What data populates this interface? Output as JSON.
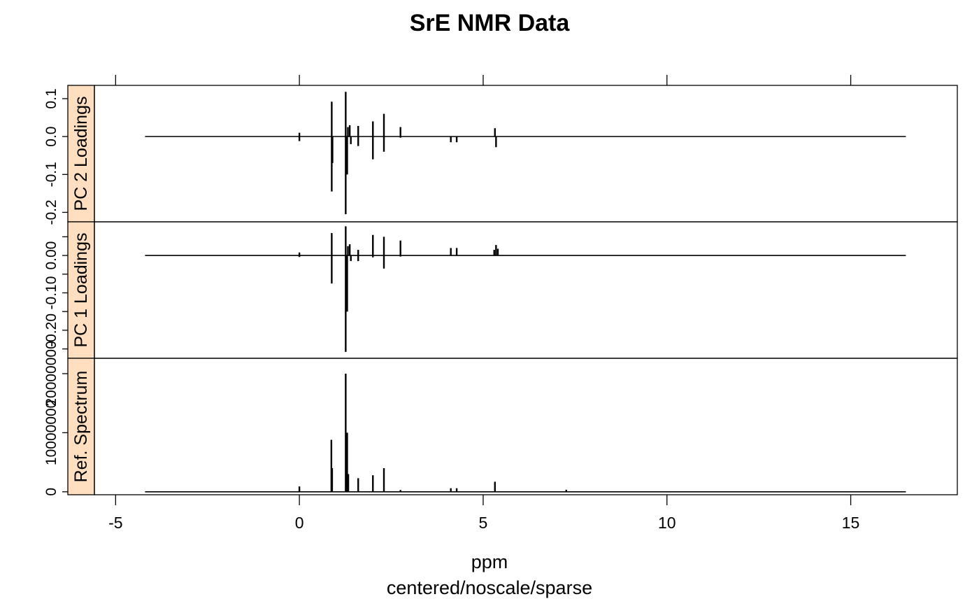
{
  "chart_data": {
    "type": "line",
    "title": "SrE NMR Data",
    "xlabel": "ppm",
    "subtitle": "centered/noscale/sparse",
    "xlim": [
      -6.3,
      17.9
    ],
    "x_range": [
      -4.2,
      16.5
    ],
    "xticks": [
      -5,
      0,
      5,
      10,
      15
    ],
    "xtick_labels": [
      "-5",
      "0",
      "5",
      "10",
      "15"
    ],
    "colors": {
      "line": "#000000",
      "strip": "#ffdfbf",
      "frame": "#000000"
    },
    "panels": [
      {
        "name": "PC 2 Loadings",
        "ylim": [
          -0.225,
          0.135
        ],
        "yticks": [
          0.1,
          0.0,
          -0.1,
          -0.2
        ],
        "ytick_labels": [
          "0.1",
          "0.0",
          "-0.1",
          "-0.2"
        ],
        "peaks": [
          {
            "x": 0.0,
            "y": 0.01
          },
          {
            "x": 0.0,
            "y": -0.012
          },
          {
            "x": 0.88,
            "y": 0.092
          },
          {
            "x": 0.88,
            "y": -0.145
          },
          {
            "x": 0.9,
            "y": -0.07
          },
          {
            "x": 1.26,
            "y": 0.118
          },
          {
            "x": 1.26,
            "y": -0.205
          },
          {
            "x": 1.3,
            "y": -0.1
          },
          {
            "x": 1.32,
            "y": 0.025
          },
          {
            "x": 1.37,
            "y": 0.03
          },
          {
            "x": 1.4,
            "y": -0.02
          },
          {
            "x": 1.6,
            "y": 0.028
          },
          {
            "x": 1.6,
            "y": -0.025
          },
          {
            "x": 2.0,
            "y": 0.04
          },
          {
            "x": 2.0,
            "y": -0.06
          },
          {
            "x": 2.3,
            "y": 0.06
          },
          {
            "x": 2.3,
            "y": -0.04
          },
          {
            "x": 2.75,
            "y": 0.025
          },
          {
            "x": 2.75,
            "y": -0.003
          },
          {
            "x": 4.12,
            "y": -0.015
          },
          {
            "x": 4.28,
            "y": -0.015
          },
          {
            "x": 5.32,
            "y": 0.022
          },
          {
            "x": 5.35,
            "y": -0.028
          }
        ]
      },
      {
        "name": "PC 1 Loadings",
        "ylim": [
          -0.275,
          0.09
        ],
        "yticks": [
          0.05,
          0.0,
          -0.05,
          -0.1,
          -0.15,
          -0.2,
          -0.25
        ],
        "ytick_labels": [
          "",
          "0.00",
          "",
          "-0.10",
          "",
          "-0.20",
          ""
        ],
        "peaks": [
          {
            "x": 0.0,
            "y": 0.008
          },
          {
            "x": 0.0,
            "y": -0.004
          },
          {
            "x": 0.88,
            "y": 0.06
          },
          {
            "x": 0.88,
            "y": -0.075
          },
          {
            "x": 1.26,
            "y": 0.078
          },
          {
            "x": 1.26,
            "y": -0.258
          },
          {
            "x": 1.3,
            "y": -0.15
          },
          {
            "x": 1.32,
            "y": 0.025
          },
          {
            "x": 1.37,
            "y": 0.03
          },
          {
            "x": 1.4,
            "y": -0.015
          },
          {
            "x": 1.6,
            "y": 0.015
          },
          {
            "x": 1.6,
            "y": -0.015
          },
          {
            "x": 2.0,
            "y": 0.055
          },
          {
            "x": 2.0,
            "y": -0.005
          },
          {
            "x": 2.3,
            "y": 0.05
          },
          {
            "x": 2.3,
            "y": -0.035
          },
          {
            "x": 2.75,
            "y": 0.04
          },
          {
            "x": 2.75,
            "y": -0.003
          },
          {
            "x": 4.12,
            "y": 0.02
          },
          {
            "x": 4.28,
            "y": 0.02
          },
          {
            "x": 5.3,
            "y": 0.015
          },
          {
            "x": 5.35,
            "y": 0.028
          },
          {
            "x": 5.4,
            "y": 0.018
          }
        ]
      },
      {
        "name": "Ref. Spectrum",
        "ylim": [
          -500000,
          22600000
        ],
        "yticks": [
          0,
          10000000,
          20000000
        ],
        "ytick_labels": [
          "0",
          "10000000",
          "20000000"
        ],
        "peaks": [
          {
            "x": 0.0,
            "y": 900000
          },
          {
            "x": 0.87,
            "y": 8800000
          },
          {
            "x": 0.89,
            "y": 4000000
          },
          {
            "x": 1.26,
            "y": 20000000
          },
          {
            "x": 1.3,
            "y": 10000000
          },
          {
            "x": 1.33,
            "y": 3000000
          },
          {
            "x": 1.6,
            "y": 2300000
          },
          {
            "x": 2.0,
            "y": 2800000
          },
          {
            "x": 2.3,
            "y": 4000000
          },
          {
            "x": 2.75,
            "y": 300000
          },
          {
            "x": 4.12,
            "y": 600000
          },
          {
            "x": 4.28,
            "y": 600000
          },
          {
            "x": 5.32,
            "y": 1700000
          },
          {
            "x": 7.26,
            "y": 350000
          },
          {
            "x": 9.2,
            "y": 50000
          }
        ]
      }
    ]
  }
}
